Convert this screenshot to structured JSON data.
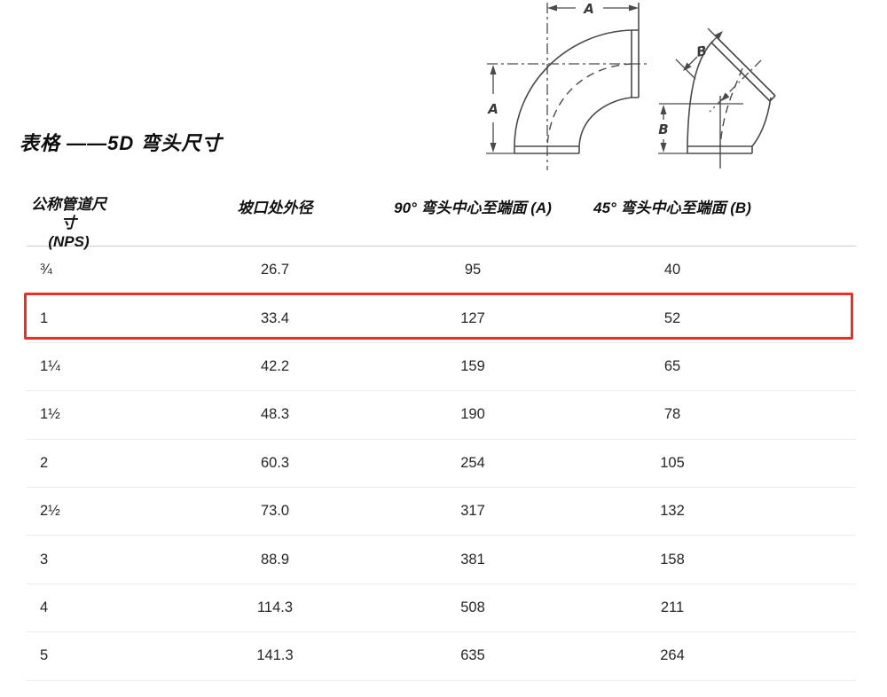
{
  "title": "表格 ——5D 弯头尺寸",
  "diagrams": {
    "elbow90": {
      "dim_top_label": "A",
      "dim_left_label": "A"
    },
    "elbow45": {
      "dim_diagonal_label": "B",
      "dim_left_label": "B"
    }
  },
  "table": {
    "header": {
      "col1_line1": "公称管道尺寸",
      "col1_line2": "(NPS)",
      "col2": "坡口处外径",
      "col3": "90° 弯头中心至端面 (A)",
      "col4": "45° 弯头中心至端面 (B)"
    },
    "rows": [
      [
        "¾",
        "26.7",
        "95",
        "40"
      ],
      [
        "1",
        "33.4",
        "127",
        "52"
      ],
      [
        "1¼",
        "42.2",
        "159",
        "65"
      ],
      [
        "1½",
        "48.3",
        "190",
        "78"
      ],
      [
        "2",
        "60.3",
        "254",
        "105"
      ],
      [
        "2½",
        "73.0",
        "317",
        "132"
      ],
      [
        "3",
        "88.9",
        "381",
        "158"
      ],
      [
        "4",
        "114.3",
        "508",
        "211"
      ],
      [
        "5",
        "141.3",
        "635",
        "264"
      ]
    ],
    "highlighted_row_index": 1,
    "highlight_color": "#ee2e20"
  }
}
